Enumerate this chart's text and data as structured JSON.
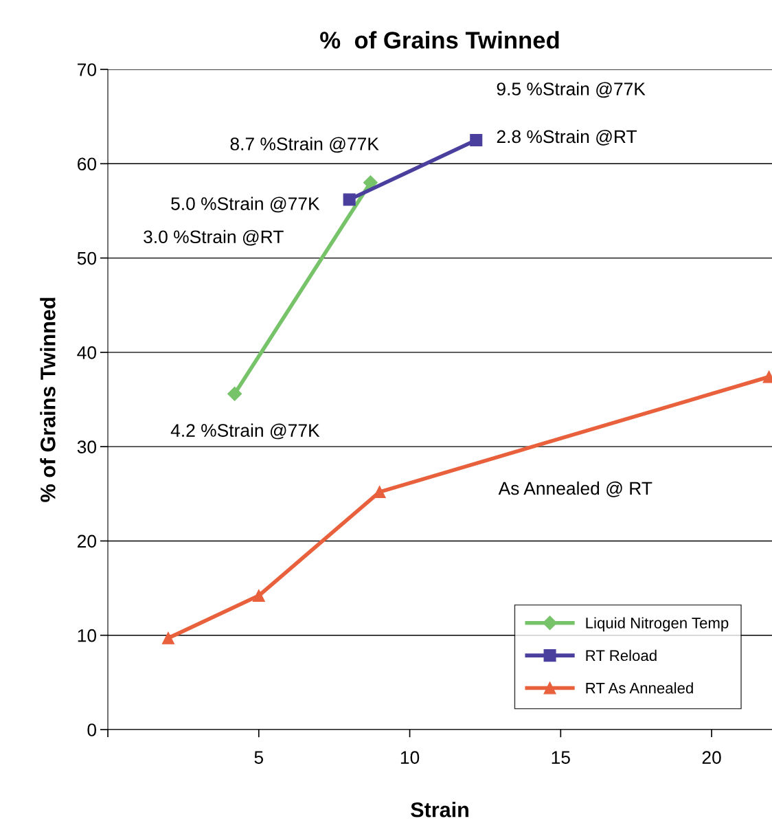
{
  "chart_data": {
    "type": "line",
    "title": "%  of Grains Twinned",
    "xlabel": "Strain",
    "ylabel": "% of Grains Twinned",
    "xlim": [
      0,
      22
    ],
    "xticks": [
      {
        "value": 0,
        "label": null
      },
      5,
      10,
      15,
      20
    ],
    "ylim": [
      0,
      70
    ],
    "yticks": [
      0,
      10,
      20,
      30,
      40,
      50,
      60,
      70
    ],
    "grid": "y",
    "legend": "bottom right",
    "series": [
      {
        "name": "Liquid Nitrogen Temp",
        "color": "#77c36a",
        "marker": "diamond",
        "x": [
          4.2,
          8.7
        ],
        "values": [
          35.6,
          58.0
        ]
      },
      {
        "name": "RT Reload",
        "color": "#4b3f9e",
        "marker": "square",
        "x": [
          8.0,
          12.2
        ],
        "values": [
          56.2,
          62.5
        ]
      },
      {
        "name": "RT As Annealed",
        "color": "#e8603c",
        "marker": "triangle",
        "x": [
          2.0,
          5.0,
          9.0,
          21.9
        ],
        "values": [
          9.7,
          14.2,
          25.2,
          37.4
        ]
      }
    ],
    "annotations": [
      {
        "text": "8.7 %Strain @77K",
        "x": 8.7,
        "y": 58.0
      },
      {
        "text": "9.5 %Strain @77K",
        "x": 12.2,
        "y": 62.5
      },
      {
        "text": "2.8 %Strain @RT",
        "x": 12.2,
        "y": 62.5
      },
      {
        "text": "5.0 %Strain @77K",
        "x": 8.0,
        "y": 56.2
      },
      "3.0 %Strain @RT",
      {
        "text": "4.2 %Strain @77K",
        "x": 4.2,
        "y": 35.6
      },
      "As Annealed @ RT"
    ]
  }
}
